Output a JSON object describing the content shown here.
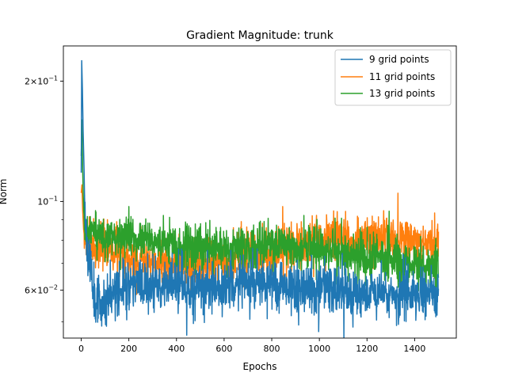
{
  "chart_data": {
    "type": "line",
    "title": "Gradient Magnitude: trunk",
    "xlabel": "Epochs",
    "ylabel": "Norm",
    "xlim": [
      -75,
      1575
    ],
    "ylim": [
      0.0455,
      0.245
    ],
    "yscale": "log",
    "grid": false,
    "legend_position": "top-right",
    "x_ticks": [
      0,
      200,
      400,
      600,
      800,
      1000,
      1200,
      1400
    ],
    "x_tick_labels": [
      "0",
      "200",
      "400",
      "600",
      "800",
      "1000",
      "1200",
      "1400"
    ],
    "y_ticks_major": [
      {
        "value": 0.06,
        "mantissa": "6",
        "exponent": "−2"
      },
      {
        "value": 0.1,
        "mantissa": "",
        "exponent": "−1"
      },
      {
        "value": 0.2,
        "mantissa": "2",
        "exponent": "−1"
      }
    ],
    "y_ticks_minor": [
      0.05,
      0.07,
      0.08,
      0.09
    ],
    "series": [
      {
        "name": "9 grid points",
        "color": "#1f77b4",
        "points": [
          [
            0,
            0.118
          ],
          [
            2,
            0.225
          ],
          [
            5,
            0.19
          ],
          [
            8,
            0.15
          ],
          [
            12,
            0.12
          ],
          [
            15,
            0.1
          ],
          [
            20,
            0.085
          ],
          [
            25,
            0.078
          ],
          [
            30,
            0.072
          ],
          [
            35,
            0.07
          ],
          [
            40,
            0.068
          ],
          [
            45,
            0.066
          ],
          [
            50,
            0.063
          ],
          [
            55,
            0.058
          ],
          [
            60,
            0.056
          ],
          [
            70,
            0.055
          ],
          [
            80,
            0.056
          ],
          [
            100,
            0.057
          ],
          [
            120,
            0.058
          ],
          [
            140,
            0.06
          ],
          [
            160,
            0.06
          ],
          [
            180,
            0.061
          ],
          [
            200,
            0.062
          ],
          [
            250,
            0.062
          ],
          [
            300,
            0.062
          ],
          [
            350,
            0.062
          ],
          [
            400,
            0.062
          ],
          [
            450,
            0.061
          ],
          [
            500,
            0.061
          ],
          [
            550,
            0.061
          ],
          [
            600,
            0.062
          ],
          [
            650,
            0.062
          ],
          [
            700,
            0.062
          ],
          [
            750,
            0.062
          ],
          [
            800,
            0.062
          ],
          [
            850,
            0.061
          ],
          [
            900,
            0.061
          ],
          [
            950,
            0.06
          ],
          [
            1000,
            0.06
          ],
          [
            1050,
            0.06
          ],
          [
            1100,
            0.06
          ],
          [
            1150,
            0.059
          ],
          [
            1200,
            0.059
          ],
          [
            1250,
            0.059
          ],
          [
            1300,
            0.059
          ],
          [
            1350,
            0.059
          ],
          [
            1400,
            0.059
          ],
          [
            1450,
            0.059
          ],
          [
            1500,
            0.058
          ]
        ],
        "noise": 0.07,
        "seed": 11
      },
      {
        "name": "11 grid points",
        "color": "#ff7f0e",
        "points": [
          [
            0,
            0.105
          ],
          [
            3,
            0.11
          ],
          [
            6,
            0.095
          ],
          [
            10,
            0.085
          ],
          [
            15,
            0.08
          ],
          [
            20,
            0.077
          ],
          [
            30,
            0.078
          ],
          [
            50,
            0.078
          ],
          [
            80,
            0.078
          ],
          [
            100,
            0.077
          ],
          [
            150,
            0.074
          ],
          [
            200,
            0.072
          ],
          [
            250,
            0.07
          ],
          [
            300,
            0.07
          ],
          [
            350,
            0.069
          ],
          [
            400,
            0.069
          ],
          [
            450,
            0.069
          ],
          [
            500,
            0.069
          ],
          [
            550,
            0.07
          ],
          [
            600,
            0.071
          ],
          [
            650,
            0.072
          ],
          [
            700,
            0.073
          ],
          [
            750,
            0.074
          ],
          [
            800,
            0.075
          ],
          [
            850,
            0.076
          ],
          [
            900,
            0.077
          ],
          [
            950,
            0.078
          ],
          [
            1000,
            0.079
          ],
          [
            1050,
            0.08
          ],
          [
            1100,
            0.08
          ],
          [
            1150,
            0.08
          ],
          [
            1200,
            0.081
          ],
          [
            1250,
            0.081
          ],
          [
            1300,
            0.081
          ],
          [
            1350,
            0.08
          ],
          [
            1400,
            0.08
          ],
          [
            1450,
            0.079
          ],
          [
            1500,
            0.078
          ]
        ],
        "noise": 0.065,
        "seed": 23
      },
      {
        "name": "13 grid points",
        "color": "#2ca02c",
        "points": [
          [
            0,
            0.13
          ],
          [
            3,
            0.16
          ],
          [
            6,
            0.12
          ],
          [
            10,
            0.095
          ],
          [
            15,
            0.088
          ],
          [
            20,
            0.085
          ],
          [
            30,
            0.083
          ],
          [
            50,
            0.082
          ],
          [
            100,
            0.082
          ],
          [
            150,
            0.082
          ],
          [
            200,
            0.081
          ],
          [
            250,
            0.08
          ],
          [
            300,
            0.079
          ],
          [
            350,
            0.078
          ],
          [
            400,
            0.077
          ],
          [
            450,
            0.077
          ],
          [
            500,
            0.077
          ],
          [
            550,
            0.077
          ],
          [
            600,
            0.077
          ],
          [
            650,
            0.077
          ],
          [
            700,
            0.077
          ],
          [
            750,
            0.077
          ],
          [
            800,
            0.077
          ],
          [
            850,
            0.077
          ],
          [
            900,
            0.077
          ],
          [
            950,
            0.076
          ],
          [
            1000,
            0.076
          ],
          [
            1050,
            0.075
          ],
          [
            1100,
            0.074
          ],
          [
            1150,
            0.073
          ],
          [
            1200,
            0.072
          ],
          [
            1250,
            0.072
          ],
          [
            1300,
            0.071
          ],
          [
            1350,
            0.07
          ],
          [
            1400,
            0.07
          ],
          [
            1450,
            0.069
          ],
          [
            1500,
            0.069
          ]
        ],
        "noise": 0.06,
        "seed": 37
      }
    ]
  }
}
